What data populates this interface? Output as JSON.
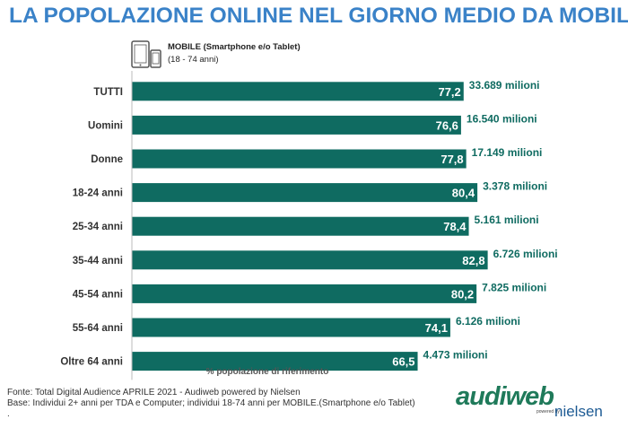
{
  "title": "LA POPOLAZIONE ONLINE NEL GIORNO MEDIO DA MOBILE",
  "legend": {
    "series_label": "MOBILE (Smartphone e/o Tablet)",
    "range": "(18 - 74 anni)",
    "icon": "smartphone-tablet-icon"
  },
  "colors": {
    "title": "#3a82c8",
    "bar": "#0f6b61",
    "annotation": "#0f6b61",
    "bar_label": "#ffffff"
  },
  "chart_data": {
    "type": "bar",
    "orientation": "horizontal",
    "xlabel": "% popolazione di riferimento",
    "ylabel": "",
    "xlim": [
      0,
      100
    ],
    "grid": false,
    "categories": [
      "TUTTI",
      "Uomini",
      "Donne",
      "18-24 anni",
      "25-34 anni",
      "35-44 anni",
      "45-54 anni",
      "55-64 anni",
      "Oltre 64 anni"
    ],
    "series": [
      {
        "name": "MOBILE (Smartphone e/o Tablet)",
        "values": [
          77.2,
          76.6,
          77.8,
          80.4,
          78.4,
          82.8,
          80.2,
          74.1,
          66.5
        ],
        "value_labels": [
          "77,2",
          "76,6",
          "77,8",
          "80,4",
          "78,4",
          "82,8",
          "80,2",
          "74,1",
          "66,5"
        ],
        "annotations": [
          "33.689 milioni",
          "16.540 milioni",
          "17.149 milioni",
          "3.378 milioni",
          "5.161 milioni",
          "6.726 milioni",
          "7.825 milioni",
          "6.126 milioni",
          "4.473 milioni"
        ]
      }
    ]
  },
  "footer": {
    "source": "Fonte: Total Digital Audience APRILE 2021 - Audiweb powered by Nielsen",
    "base": "Base:  Individui 2+ anni per TDA e Computer; individui 18-74 anni per MOBILE.(Smartphone e/o Tablet)",
    "extra": "."
  },
  "logo": {
    "main": "audiweb",
    "powered": "powered by",
    "partner": "nielsen"
  }
}
